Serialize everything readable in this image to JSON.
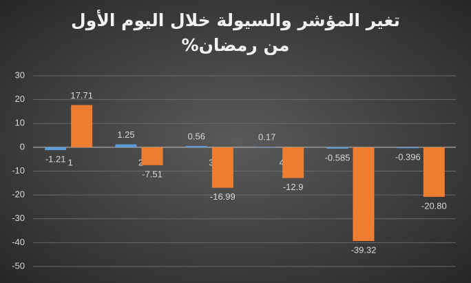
{
  "chart_data": {
    "type": "bar",
    "title": "تغير المؤشر والسيولة خلال اليوم الأول من رمضان%",
    "categories": [
      "1",
      "2",
      "3",
      "4",
      null,
      null
    ],
    "series": [
      {
        "color": "#5b9bd5",
        "values": [
          -1.21,
          1.25,
          0.56,
          0.17,
          -0.585,
          -0.396
        ]
      },
      {
        "color": "#ed7d31",
        "values": [
          17.71,
          -7.51,
          -16.99,
          -12.9,
          -39.32,
          -20.8
        ],
        "value_labels": [
          "17.71",
          "-7.51",
          "-16.99",
          "-12.9",
          "-39.32",
          "-20.80"
        ]
      }
    ],
    "ylim": [
      -50,
      30
    ],
    "yticks": [
      -50,
      -40,
      -30,
      -20,
      -10,
      0,
      10,
      20,
      30
    ],
    "grid": true
  }
}
